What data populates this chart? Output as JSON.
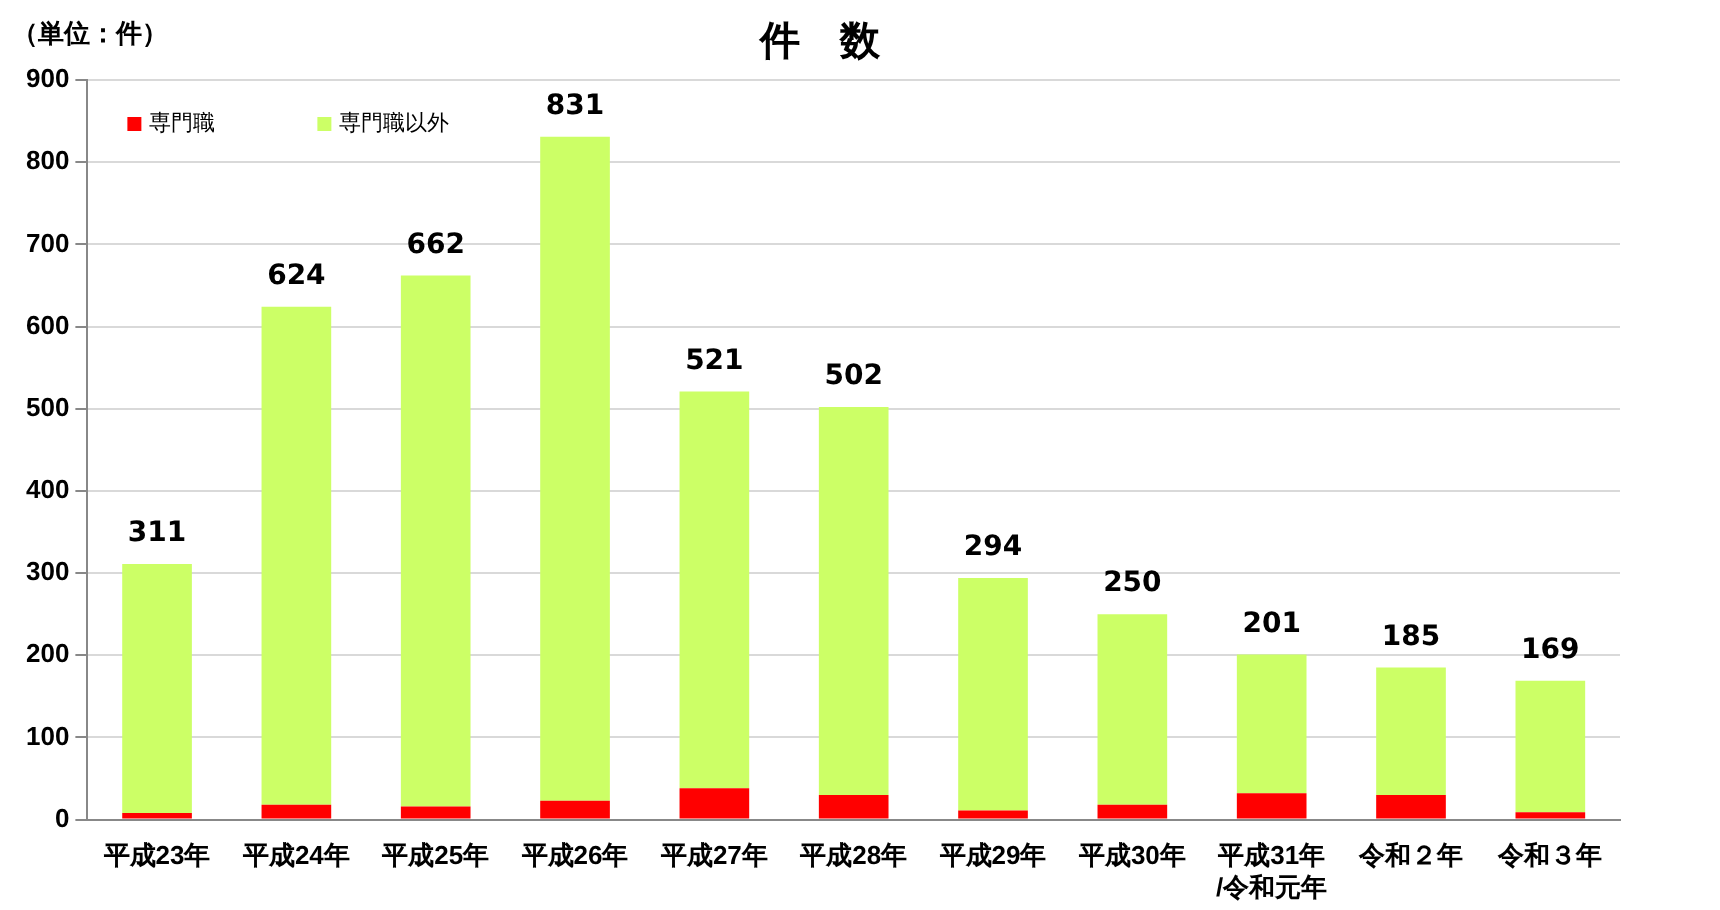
{
  "chart_data": {
    "type": "bar",
    "title": "件　数",
    "annotations": [
      "（単位：件）"
    ],
    "categories": [
      "平成23年",
      "平成24年",
      "平成25年",
      "平成26年",
      "平成27年",
      "平成28年",
      "平成29年",
      "平成30年",
      "平成31年\n/令和元年",
      "令和２年",
      "令和３年"
    ],
    "series": [
      {
        "name": "専門職",
        "color": "#ff0000",
        "values": [
          8,
          18,
          16,
          23,
          38,
          30,
          11,
          18,
          32,
          30,
          9
        ]
      },
      {
        "name": "専門職以外",
        "color": "#ccff66",
        "values": [
          303,
          606,
          646,
          808,
          483,
          472,
          283,
          232,
          169,
          155,
          160
        ]
      }
    ],
    "stacked": true,
    "totals": [
      "311",
      "624",
      "662",
      "831",
      "521",
      "502",
      "294",
      "250",
      "201",
      "185",
      "169"
    ],
    "ylim": [
      0,
      900
    ],
    "yticks": [
      0,
      100,
      200,
      300,
      400,
      500,
      600,
      700,
      800,
      900
    ],
    "grid": "y",
    "legend": "top left"
  }
}
